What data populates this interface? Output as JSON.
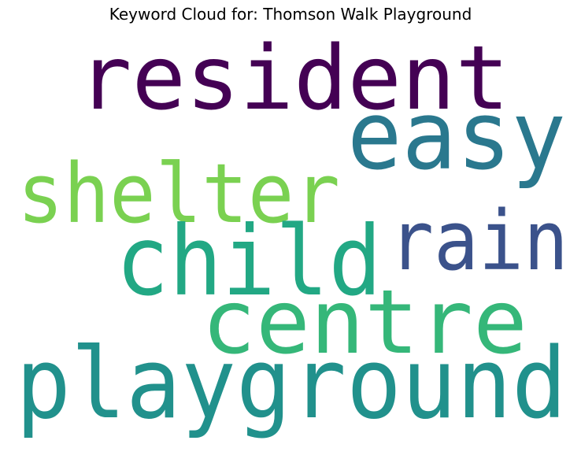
{
  "title": "Keyword Cloud for: Thomson Walk Playground",
  "words": [
    {
      "text": "resident",
      "color": "#440154"
    },
    {
      "text": "easy",
      "color": "#2a788e"
    },
    {
      "text": "shelter",
      "color": "#7ad151"
    },
    {
      "text": "rain",
      "color": "#3b528b"
    },
    {
      "text": "child",
      "color": "#22a884"
    },
    {
      "text": "centre",
      "color": "#35b779"
    },
    {
      "text": "playground",
      "color": "#21918c"
    }
  ]
}
